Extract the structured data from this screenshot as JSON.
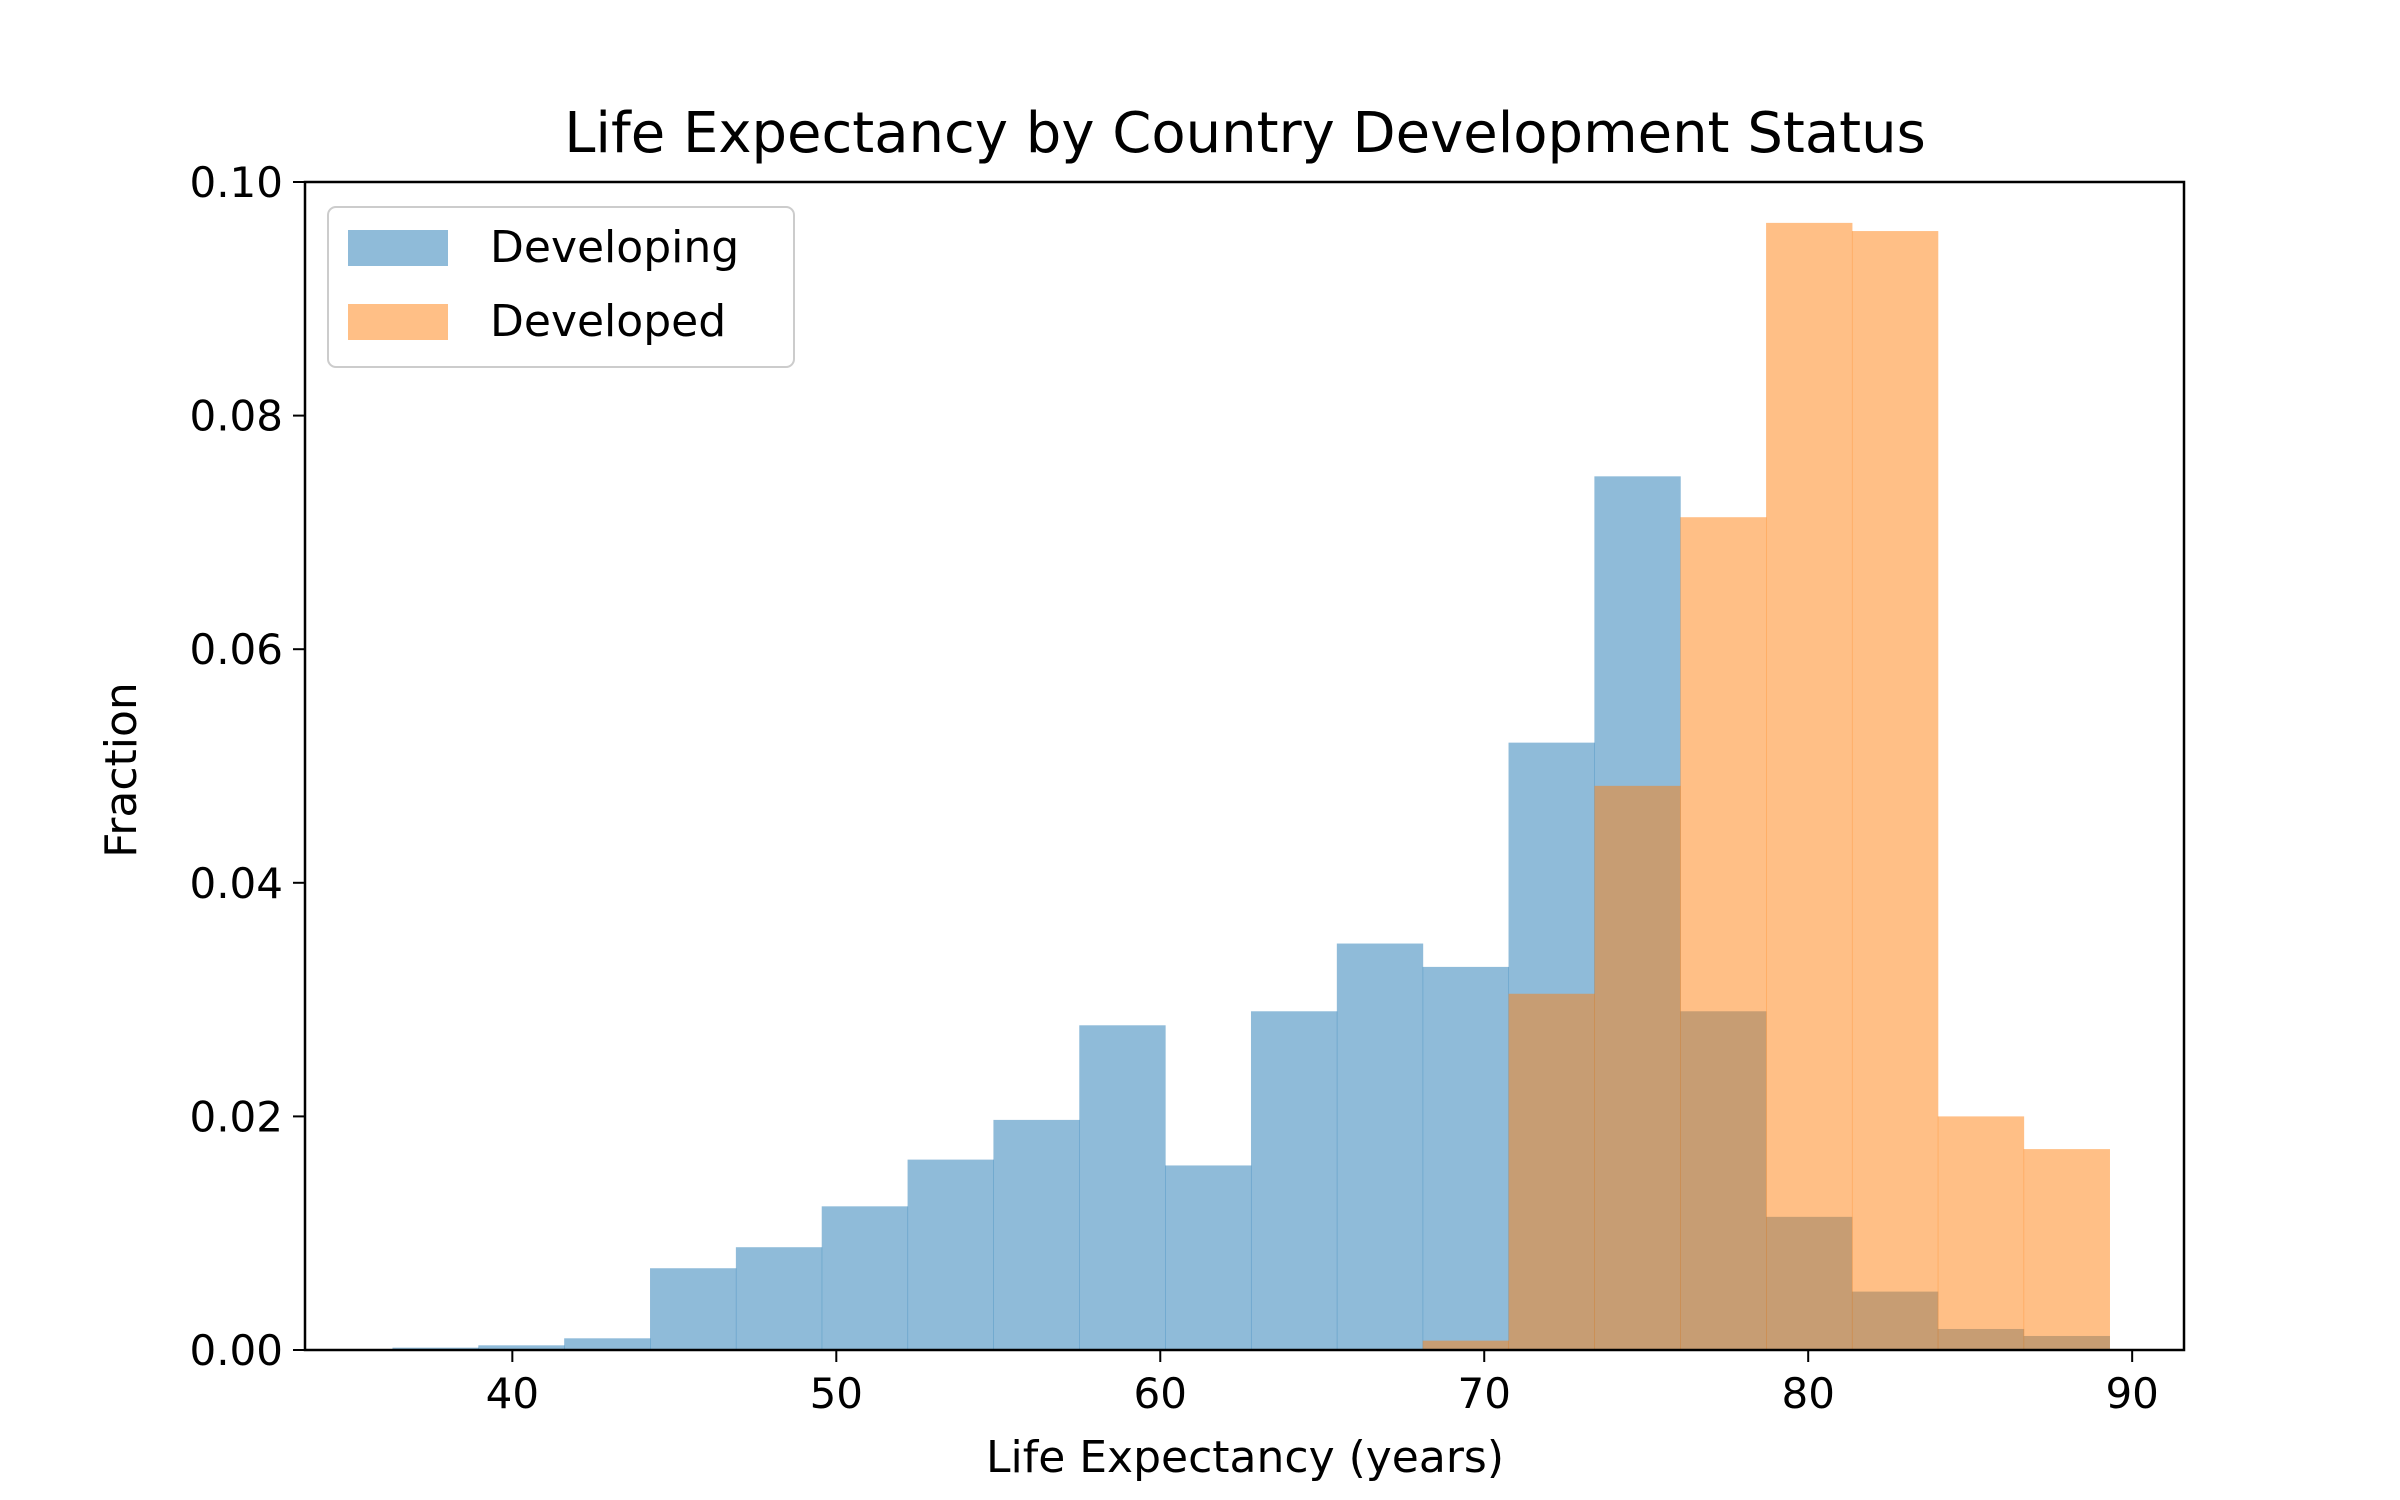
{
  "chart_data": {
    "type": "bar",
    "title": "Life Expectancy by Country Development Status",
    "xlabel": "Life Expectancy (years)",
    "ylabel": "Fraction",
    "xlim": [
      33.6,
      91.6
    ],
    "ylim": [
      0,
      0.1
    ],
    "xticks": [
      {
        "value": 40,
        "label": "40"
      },
      {
        "value": 50,
        "label": "50"
      },
      {
        "value": 60,
        "label": "60"
      },
      {
        "value": 70,
        "label": "70"
      },
      {
        "value": 80,
        "label": "80"
      },
      {
        "value": 90,
        "label": "90"
      }
    ],
    "yticks": [
      {
        "value": 0.0,
        "label": "0.00"
      },
      {
        "value": 0.02,
        "label": "0.02"
      },
      {
        "value": 0.04,
        "label": "0.04"
      },
      {
        "value": 0.06,
        "label": "0.06"
      },
      {
        "value": 0.08,
        "label": "0.08"
      },
      {
        "value": 0.1,
        "label": "0.10"
      }
    ],
    "grid": false,
    "legend_position": "top-left",
    "series": [
      {
        "name": "Developing",
        "color": "#1f77b4",
        "alpha": 0.5,
        "bin_edges": [
          36.3,
          38.95,
          41.6,
          44.25,
          46.9,
          49.55,
          52.2,
          54.85,
          57.5,
          60.15,
          62.8,
          65.45,
          68.1,
          70.75,
          73.4,
          76.05,
          78.7,
          81.35,
          84.0,
          86.65,
          89.3
        ],
        "values": [
          0.0002,
          0.0004,
          0.001,
          0.007,
          0.0088,
          0.0123,
          0.0163,
          0.0197,
          0.0278,
          0.0158,
          0.029,
          0.0348,
          0.0328,
          0.052,
          0.0748,
          0.029,
          0.0114,
          0.005,
          0.0018,
          0.0012
        ]
      },
      {
        "name": "Developed",
        "color": "#ff7f0e",
        "alpha": 0.5,
        "bin_edges": [
          36.3,
          38.95,
          41.6,
          44.25,
          46.9,
          49.55,
          52.2,
          54.85,
          57.5,
          60.15,
          62.8,
          65.45,
          68.1,
          70.75,
          73.4,
          76.05,
          78.7,
          81.35,
          84.0,
          86.65,
          89.3
        ],
        "values": [
          0,
          0,
          0,
          0,
          0,
          0,
          0,
          0,
          0,
          0,
          0,
          0,
          0.0008,
          0.0305,
          0.0483,
          0.0713,
          0.0965,
          0.0958,
          0.02,
          0.0172
        ]
      }
    ]
  }
}
